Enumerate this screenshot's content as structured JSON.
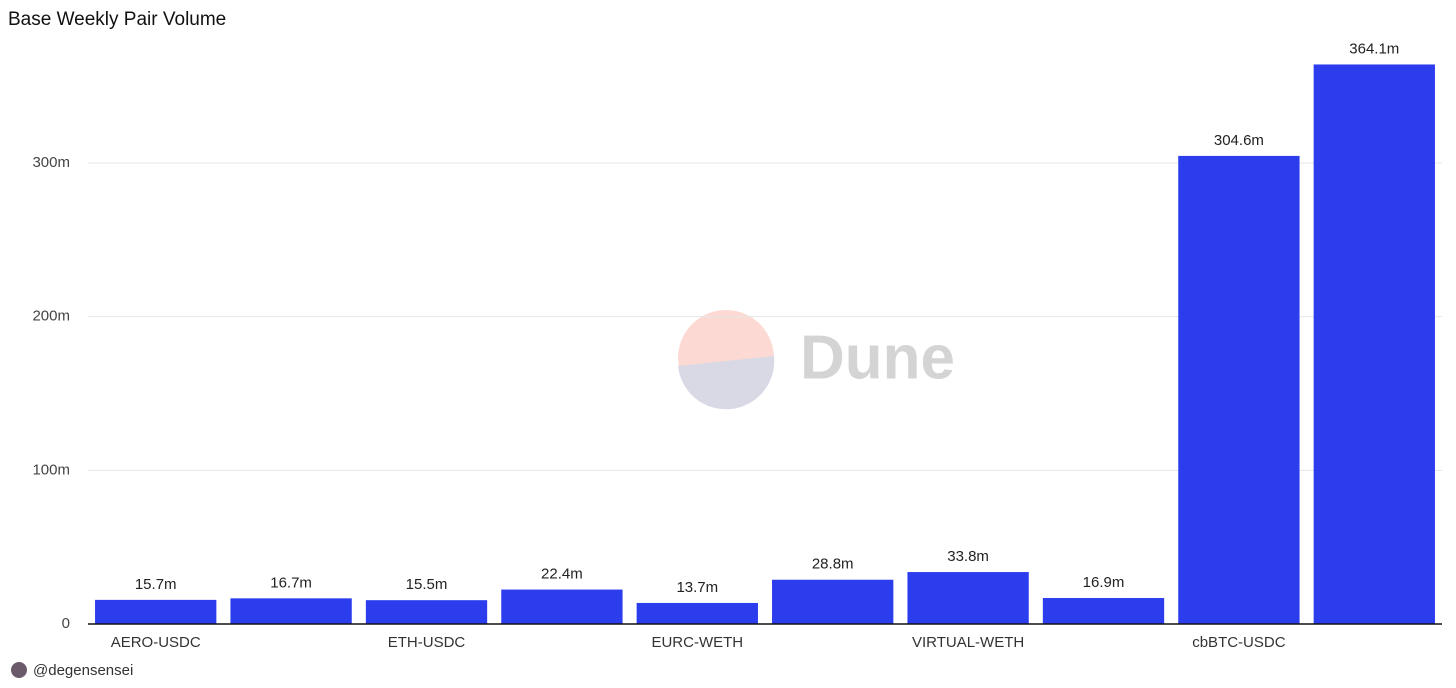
{
  "chart_data": {
    "type": "bar",
    "title": "Base Weekly Pair Volume",
    "categories": [
      "AERO-USDC",
      null,
      "ETH-USDC",
      null,
      "EURC-WETH",
      null,
      "VIRTUAL-WETH",
      null,
      "cbBTC-USDC",
      null
    ],
    "values": [
      15.7,
      16.7,
      15.5,
      22.4,
      13.7,
      28.8,
      33.8,
      16.9,
      304.6,
      364.1
    ],
    "value_labels": [
      "15.7m",
      "16.7m",
      "15.5m",
      "22.4m",
      "13.7m",
      "28.8m",
      "33.8m",
      "16.9m",
      "304.6m",
      "364.1m"
    ],
    "color": "#2b3ded",
    "ylim": [
      0,
      400
    ],
    "yticks": [
      0,
      {
        "value": 100,
        "label": "100m"
      },
      {
        "value": 200,
        "label": "200m"
      },
      {
        "value": 300,
        "label": "300m"
      }
    ],
    "grid": true,
    "watermark": "Dune",
    "author": "@degensensei"
  }
}
